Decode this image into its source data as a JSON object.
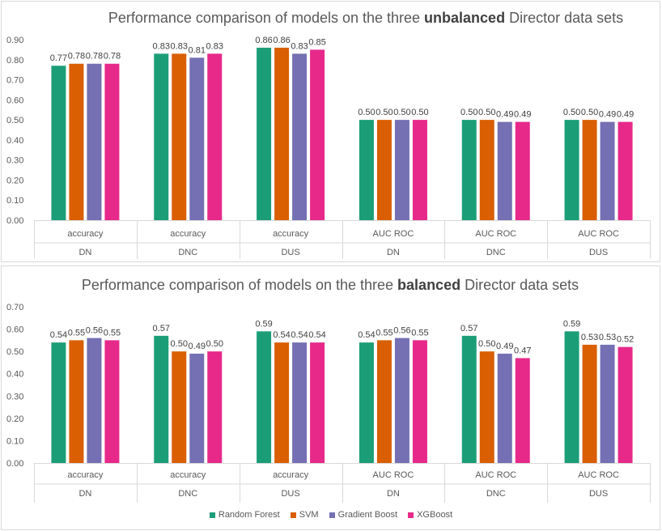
{
  "legend": {
    "items": [
      {
        "name": "Random Forest",
        "color": "#1b9e77"
      },
      {
        "name": "SVM",
        "color": "#d95f02"
      },
      {
        "name": "Gradient Boost",
        "color": "#7570b3"
      },
      {
        "name": "XGBoost",
        "color": "#e7298a"
      }
    ]
  },
  "chart_data": [
    {
      "type": "bar",
      "title_parts": [
        "Performance comparison of models on the three ",
        "unbalanced",
        " Director data sets"
      ],
      "categories": [
        {
          "metric": "accuracy",
          "dataset": "DN"
        },
        {
          "metric": "accuracy",
          "dataset": "DNC"
        },
        {
          "metric": "accuracy",
          "dataset": "DUS"
        },
        {
          "metric": "AUC ROC",
          "dataset": "DN"
        },
        {
          "metric": "AUC ROC",
          "dataset": "DNC"
        },
        {
          "metric": "AUC ROC",
          "dataset": "DUS"
        }
      ],
      "series": [
        {
          "name": "Random Forest",
          "values": [
            0.77,
            0.83,
            0.86,
            0.5,
            0.5,
            0.5
          ],
          "labels": [
            "0.77",
            "0.83",
            "0.86",
            "0.50",
            "0.50",
            "0.50"
          ]
        },
        {
          "name": "SVM",
          "values": [
            0.78,
            0.83,
            0.86,
            0.5,
            0.5,
            0.5
          ],
          "labels": [
            "0.78",
            "0.83",
            "0.86",
            "0.50",
            "0.50",
            "0.50"
          ]
        },
        {
          "name": "Gradient Boost",
          "values": [
            0.78,
            0.81,
            0.83,
            0.5,
            0.49,
            0.49
          ],
          "labels": [
            "0.78",
            "0.81",
            "0.83",
            "0.50",
            "0.49",
            "0.49"
          ]
        },
        {
          "name": "XGBoost",
          "values": [
            0.78,
            0.83,
            0.85,
            0.5,
            0.49,
            0.49
          ],
          "labels": [
            "0.78",
            "0.83",
            "0.85",
            "0.50",
            "0.49",
            "0.49"
          ]
        }
      ],
      "yticks": [
        "0.00",
        "0.10",
        "0.20",
        "0.30",
        "0.40",
        "0.50",
        "0.60",
        "0.70",
        "0.80",
        "0.90"
      ],
      "ylim": [
        0,
        0.9
      ],
      "grid": false
    },
    {
      "type": "bar",
      "title_parts": [
        "Performance comparison of models on the three ",
        "balanced",
        " Director data sets"
      ],
      "categories": [
        {
          "metric": "accuracy",
          "dataset": "DN"
        },
        {
          "metric": "accuracy",
          "dataset": "DNC"
        },
        {
          "metric": "accuracy",
          "dataset": "DUS"
        },
        {
          "metric": "AUC ROC",
          "dataset": "DN"
        },
        {
          "metric": "AUC ROC",
          "dataset": "DNC"
        },
        {
          "metric": "AUC ROC",
          "dataset": "DUS"
        }
      ],
      "series": [
        {
          "name": "Random Forest",
          "values": [
            0.54,
            0.57,
            0.59,
            0.54,
            0.57,
            0.59
          ],
          "labels": [
            "0.54",
            "0.57",
            "0.59",
            "0.54",
            "0.57",
            "0.59"
          ]
        },
        {
          "name": "SVM",
          "values": [
            0.55,
            0.5,
            0.54,
            0.55,
            0.5,
            0.53
          ],
          "labels": [
            "0.55",
            "0.50",
            "0.54",
            "0.55",
            "0.50",
            "0.53"
          ]
        },
        {
          "name": "Gradient Boost",
          "values": [
            0.56,
            0.49,
            0.54,
            0.56,
            0.49,
            0.53
          ],
          "labels": [
            "0.56",
            "0.49",
            "0.54",
            "0.56",
            "0.49",
            "0.53"
          ]
        },
        {
          "name": "XGBoost",
          "values": [
            0.55,
            0.5,
            0.54,
            0.55,
            0.47,
            0.52
          ],
          "labels": [
            "0.55",
            "0.50",
            "0.54",
            "0.55",
            "0.47",
            "0.52"
          ]
        }
      ],
      "yticks": [
        "0.00",
        "0.10",
        "0.20",
        "0.30",
        "0.40",
        "0.50",
        "0.60",
        "0.70"
      ],
      "ylim": [
        0,
        0.7
      ],
      "grid": false
    }
  ]
}
